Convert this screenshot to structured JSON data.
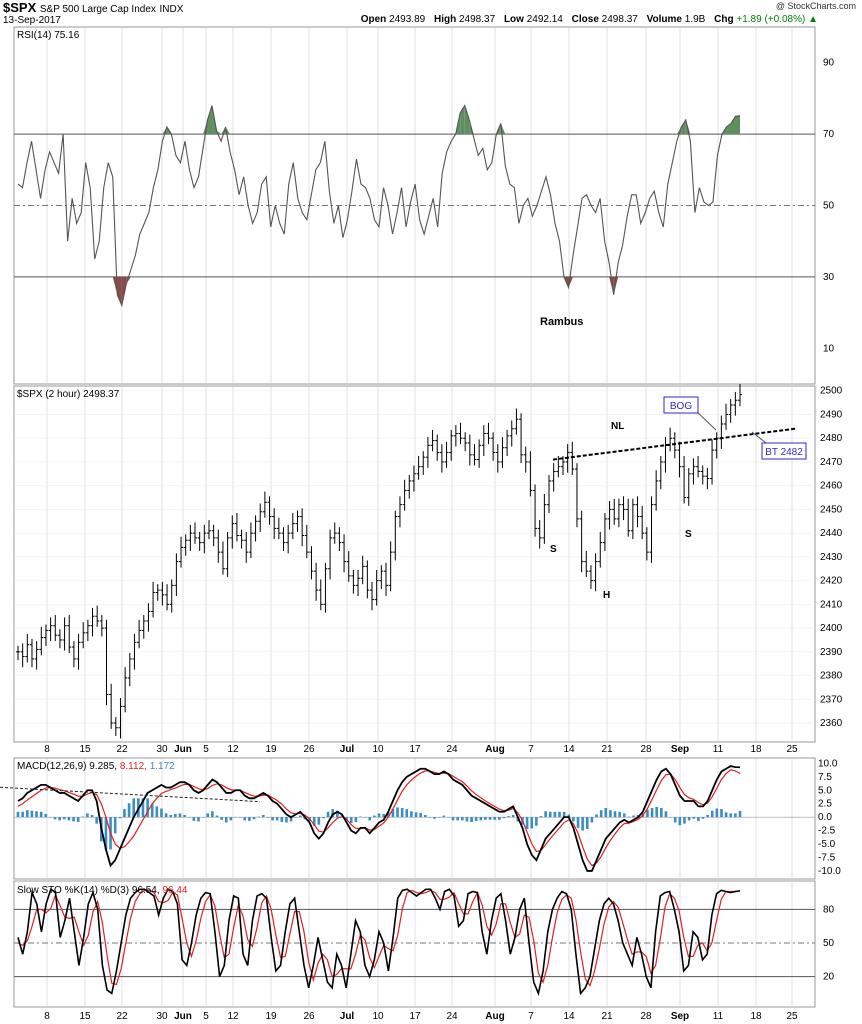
{
  "header": {
    "symbol": "$SPX",
    "name": "S&P 500 Large Cap Index",
    "exchange": "INDX",
    "date": "13-Sep-2017",
    "open_label": "Open",
    "open": "2493.89",
    "high_label": "High",
    "high": "2498.37",
    "low_label": "Low",
    "low": "2492.14",
    "close_label": "Close",
    "close": "2498.37",
    "volume_label": "Volume",
    "volume": "1.9B",
    "chg_label": "Chg",
    "chg": "+1.89 (+0.08%)",
    "chg_arrow": "▲",
    "brand": "@ StockCharts.com"
  },
  "colors": {
    "price": "#000000",
    "rsi_line": "#555555",
    "rsi_overbought_fill": "#5f8f5f",
    "rsi_oversold_fill": "#8a4a4a",
    "macd_line": "#000000",
    "signal_line": "#e02020",
    "histogram": "#3a8ec4",
    "stoch_k": "#000000",
    "stoch_d": "#e02020",
    "grid": "#cccccc",
    "annotation_box": "#2a2ad0"
  },
  "chart_data": [
    {
      "panel": "rsi",
      "type": "line",
      "label": "RSI(14) 75.16",
      "y_ticks": [
        10,
        30,
        50,
        70,
        90
      ],
      "ylim": [
        0,
        100
      ],
      "reference_lines": [
        30,
        50,
        70
      ],
      "values": [
        56,
        55,
        62,
        68,
        60,
        52,
        60,
        65,
        62,
        59,
        70,
        40,
        52,
        45,
        48,
        62,
        55,
        35,
        40,
        55,
        62,
        58,
        25,
        22,
        28,
        32,
        36,
        42,
        45,
        48,
        55,
        60,
        68,
        72,
        70,
        64,
        62,
        68,
        60,
        55,
        58,
        66,
        74,
        78,
        71,
        68,
        72,
        65,
        60,
        53,
        58,
        50,
        45,
        48,
        56,
        58,
        44,
        50,
        45,
        42,
        56,
        62,
        52,
        48,
        46,
        53,
        60,
        62,
        68,
        54,
        45,
        50,
        41,
        46,
        54,
        63,
        56,
        55,
        52,
        46,
        44,
        55,
        50,
        42,
        48,
        55,
        44,
        51,
        56,
        46,
        42,
        47,
        52,
        44,
        59,
        65,
        68,
        70,
        76,
        78,
        74,
        69,
        64,
        66,
        60,
        62,
        70,
        73,
        61,
        56,
        55,
        45,
        50,
        52,
        47,
        50,
        54,
        58,
        53,
        45,
        40,
        30,
        27,
        36,
        44,
        52,
        53,
        50,
        48,
        52,
        40,
        34,
        25,
        34,
        39,
        47,
        53,
        53,
        45,
        48,
        52,
        54,
        48,
        44,
        56,
        62,
        68,
        72,
        74,
        68,
        48,
        55,
        51,
        50,
        51,
        64,
        70,
        72,
        73,
        75,
        75.16
      ],
      "annotations": [
        "Rambus"
      ]
    },
    {
      "panel": "price",
      "type": "ohlc",
      "label": "$SPX (2 hour) 2498.37",
      "y_ticks": [
        2360,
        2370,
        2380,
        2390,
        2400,
        2410,
        2420,
        2430,
        2440,
        2450,
        2460,
        2470,
        2480,
        2490,
        2500
      ],
      "ylim": [
        2352,
        2502
      ],
      "x_ticks": [
        "8",
        "15",
        "22",
        "30",
        "Jun",
        "5",
        "12",
        "19",
        "26",
        "Jul",
        "10",
        "17",
        "24",
        "Aug",
        "7",
        "14",
        "21",
        "28",
        "Sep",
        "11",
        "18",
        "25"
      ],
      "closes": [
        2390,
        2388,
        2393,
        2387,
        2391,
        2396,
        2399,
        2401,
        2397,
        2395,
        2401,
        2392,
        2387,
        2394,
        2398,
        2401,
        2405,
        2403,
        2400,
        2372,
        2360,
        2358,
        2367,
        2379,
        2387,
        2394,
        2399,
        2403,
        2407,
        2415,
        2416,
        2414,
        2410,
        2418,
        2428,
        2434,
        2437,
        2440,
        2438,
        2436,
        2440,
        2441,
        2438,
        2432,
        2425,
        2438,
        2444,
        2439,
        2437,
        2432,
        2440,
        2445,
        2449,
        2453,
        2447,
        2442,
        2440,
        2436,
        2440,
        2444,
        2447,
        2439,
        2432,
        2424,
        2416,
        2410,
        2425,
        2438,
        2440,
        2436,
        2428,
        2422,
        2418,
        2421,
        2426,
        2416,
        2412,
        2420,
        2424,
        2418,
        2432,
        2447,
        2452,
        2458,
        2462,
        2465,
        2468,
        2472,
        2477,
        2479,
        2474,
        2470,
        2474,
        2481,
        2482,
        2480,
        2478,
        2473,
        2471,
        2477,
        2482,
        2480,
        2474,
        2470,
        2476,
        2481,
        2484,
        2488,
        2473,
        2470,
        2458,
        2442,
        2438,
        2452,
        2462,
        2466,
        2468,
        2470,
        2474,
        2467,
        2446,
        2428,
        2424,
        2420,
        2428,
        2436,
        2446,
        2450,
        2446,
        2452,
        2450,
        2441,
        2452,
        2447,
        2440,
        2432,
        2452,
        2462,
        2470,
        2477,
        2480,
        2475,
        2468,
        2455,
        2465,
        2468,
        2466,
        2464,
        2463,
        2475,
        2480,
        2486,
        2490,
        2494,
        2496,
        2498.37
      ],
      "trendlines": [
        {
          "label": "NL",
          "style": "dashed",
          "start": {
            "day_index": 114,
            "price": 2471
          },
          "end": {
            "day_index": 160,
            "price": 2484
          }
        }
      ],
      "annotations": [
        "S",
        "H",
        "S",
        "NL",
        "BOG",
        "BT 2482"
      ]
    },
    {
      "panel": "macd",
      "type": "line",
      "label": "MACD(12,26,9)",
      "values_text": [
        "9.285",
        "8.112",
        "1.172"
      ],
      "y_ticks": [
        10.0,
        7.5,
        5.0,
        2.5,
        0.0,
        -2.5,
        -5.0,
        -7.5,
        -10.0
      ],
      "ylim": [
        -11.5,
        11
      ],
      "macd": [
        3,
        3.5,
        4.5,
        5,
        5.5,
        6,
        6,
        5.5,
        5,
        4.5,
        4.5,
        4,
        3.5,
        3,
        4,
        5,
        5,
        3,
        -2,
        -6,
        -9,
        -8,
        -6,
        -4,
        -2,
        0,
        1.5,
        3,
        4.5,
        5,
        5.5,
        6,
        5.5,
        5.5,
        6,
        6.5,
        6.5,
        6,
        5,
        4.5,
        5,
        6,
        7,
        6.5,
        5.5,
        4.5,
        4.5,
        5,
        5,
        4,
        3.5,
        3.5,
        4,
        4.5,
        4,
        3,
        2.5,
        1.5,
        0.5,
        0,
        0.5,
        1,
        0,
        -1,
        -3,
        -4,
        -3,
        -1,
        0.5,
        1,
        0.5,
        -1,
        -2.5,
        -3,
        -2,
        -2,
        -3,
        -2,
        -1,
        -0.5,
        1,
        3,
        5,
        6.5,
        7.5,
        8,
        8.5,
        9,
        9,
        8.5,
        8,
        8,
        8.5,
        8,
        7,
        6.5,
        6,
        5,
        4,
        3.5,
        3,
        2.5,
        2,
        1.5,
        1,
        1,
        1.5,
        2,
        0,
        -2,
        -5,
        -7,
        -8,
        -6,
        -4,
        -3,
        -2,
        -1,
        0,
        0,
        -2,
        -5,
        -8,
        -10,
        -10,
        -8,
        -6,
        -4,
        -3,
        -2,
        -1,
        -0.5,
        -1,
        -0.5,
        0,
        1,
        3,
        5,
        7,
        8.5,
        9,
        8,
        6,
        4,
        3,
        3,
        3,
        2,
        2,
        3,
        5,
        7,
        8.5,
        9,
        9.5,
        9.3,
        9.285
      ],
      "signal": [
        2,
        2.5,
        3.2,
        3.8,
        4.4,
        5,
        5.4,
        5.5,
        5.4,
        5.1,
        4.9,
        4.6,
        4.3,
        3.9,
        3.9,
        4.3,
        4.6,
        4.2,
        2.5,
        0,
        -3,
        -5,
        -5.8,
        -5.5,
        -4.6,
        -3.5,
        -2,
        -0.5,
        1,
        2.5,
        3.5,
        4.4,
        4.8,
        5.1,
        5.4,
        5.8,
        6.1,
        6.1,
        5.7,
        5.3,
        5.1,
        5.3,
        5.9,
        6.2,
        6,
        5.5,
        5.1,
        5,
        5,
        4.6,
        4.2,
        3.9,
        3.9,
        4.1,
        4.1,
        3.6,
        3.1,
        2.4,
        1.5,
        0.8,
        0.6,
        0.7,
        0.4,
        -0.3,
        -1.4,
        -2.6,
        -2.8,
        -2,
        -1,
        -0.2,
        0.1,
        -0.4,
        -1.4,
        -2.1,
        -2.1,
        -2,
        -2.4,
        -2.3,
        -1.7,
        -1.1,
        0,
        1.5,
        3.2,
        4.8,
        6,
        6.9,
        7.6,
        8.2,
        8.6,
        8.6,
        8.3,
        8.1,
        8.2,
        8.1,
        7.6,
        7.1,
        6.6,
        5.8,
        4.9,
        4.2,
        3.6,
        3,
        2.5,
        2,
        1.5,
        1.2,
        1.3,
        1.6,
        0.8,
        -0.6,
        -2.8,
        -4.9,
        -6.4,
        -6.2,
        -5.1,
        -4,
        -3,
        -2,
        -1,
        -0.5,
        -1.2,
        -3,
        -5.5,
        -7.8,
        -9,
        -8.5,
        -7.3,
        -5.7,
        -4.3,
        -3.1,
        -2,
        -1.2,
        -1.1,
        -0.8,
        -0.4,
        0.3,
        1.6,
        3.3,
        5.1,
        6.8,
        7.9,
        8,
        7,
        5.5,
        4.2,
        3.6,
        3.3,
        2.7,
        2.3,
        2.6,
        3.8,
        5.4,
        7,
        8.1,
        8.8,
        8.6,
        8.112
      ],
      "trendlines": [
        {
          "style": "dashed",
          "start": {
            "day_index": 0,
            "value": 5.0
          },
          "end": {
            "day_index": 50,
            "value": 4.0
          }
        }
      ]
    },
    {
      "panel": "stochastic",
      "type": "line",
      "label": "Slow STO %K(14) %D(3)",
      "values_text": [
        "96.54",
        "96.44"
      ],
      "y_ticks": [
        20,
        50,
        80
      ],
      "ylim": [
        0,
        100
      ],
      "reference_lines": [
        20,
        50,
        80
      ],
      "k": [
        55,
        40,
        60,
        95,
        85,
        60,
        85,
        98,
        95,
        55,
        70,
        90,
        60,
        30,
        55,
        85,
        95,
        80,
        30,
        8,
        5,
        25,
        50,
        75,
        90,
        95,
        98,
        98,
        95,
        92,
        75,
        90,
        98,
        96,
        85,
        35,
        30,
        50,
        75,
        90,
        95,
        94,
        60,
        20,
        30,
        70,
        92,
        90,
        40,
        30,
        70,
        92,
        94,
        90,
        55,
        25,
        30,
        60,
        85,
        90,
        60,
        30,
        10,
        30,
        55,
        35,
        15,
        10,
        40,
        30,
        10,
        40,
        70,
        60,
        30,
        20,
        35,
        60,
        50,
        25,
        55,
        90,
        97,
        98,
        95,
        92,
        95,
        98,
        98,
        90,
        80,
        96,
        98,
        92,
        65,
        70,
        94,
        96,
        95,
        60,
        40,
        70,
        90,
        94,
        70,
        40,
        55,
        80,
        90,
        50,
        15,
        5,
        25,
        60,
        80,
        90,
        96,
        94,
        80,
        40,
        5,
        10,
        20,
        45,
        70,
        85,
        90,
        85,
        70,
        50,
        40,
        30,
        55,
        40,
        20,
        10,
        60,
        92,
        95,
        96,
        80,
        60,
        25,
        30,
        60,
        55,
        35,
        40,
        75,
        94,
        97,
        96,
        95,
        96,
        96.54
      ],
      "d": [
        50,
        48,
        52,
        65,
        80,
        80,
        77,
        81,
        93,
        83,
        73,
        72,
        73,
        60,
        48,
        57,
        78,
        87,
        68,
        39,
        14,
        13,
        27,
        50,
        72,
        87,
        94,
        97,
        97,
        95,
        87,
        86,
        88,
        95,
        93,
        72,
        50,
        38,
        52,
        72,
        87,
        93,
        83,
        58,
        37,
        40,
        64,
        84,
        74,
        53,
        47,
        64,
        86,
        92,
        80,
        57,
        37,
        38,
        58,
        78,
        78,
        60,
        33,
        17,
        32,
        40,
        35,
        20,
        22,
        27,
        27,
        27,
        40,
        57,
        53,
        37,
        28,
        38,
        48,
        45,
        43,
        57,
        81,
        95,
        97,
        95,
        94,
        95,
        97,
        95,
        89,
        89,
        91,
        95,
        85,
        76,
        76,
        87,
        95,
        84,
        65,
        57,
        67,
        85,
        85,
        68,
        55,
        58,
        75,
        73,
        52,
        23,
        15,
        30,
        55,
        77,
        89,
        93,
        90,
        71,
        42,
        18,
        12,
        25,
        45,
        67,
        82,
        87,
        82,
        68,
        53,
        40,
        42,
        42,
        38,
        23,
        30,
        54,
        82,
        94,
        90,
        79,
        55,
        38,
        38,
        48,
        50,
        43,
        50,
        70,
        89,
        96,
        96,
        96,
        96.44
      ]
    }
  ]
}
